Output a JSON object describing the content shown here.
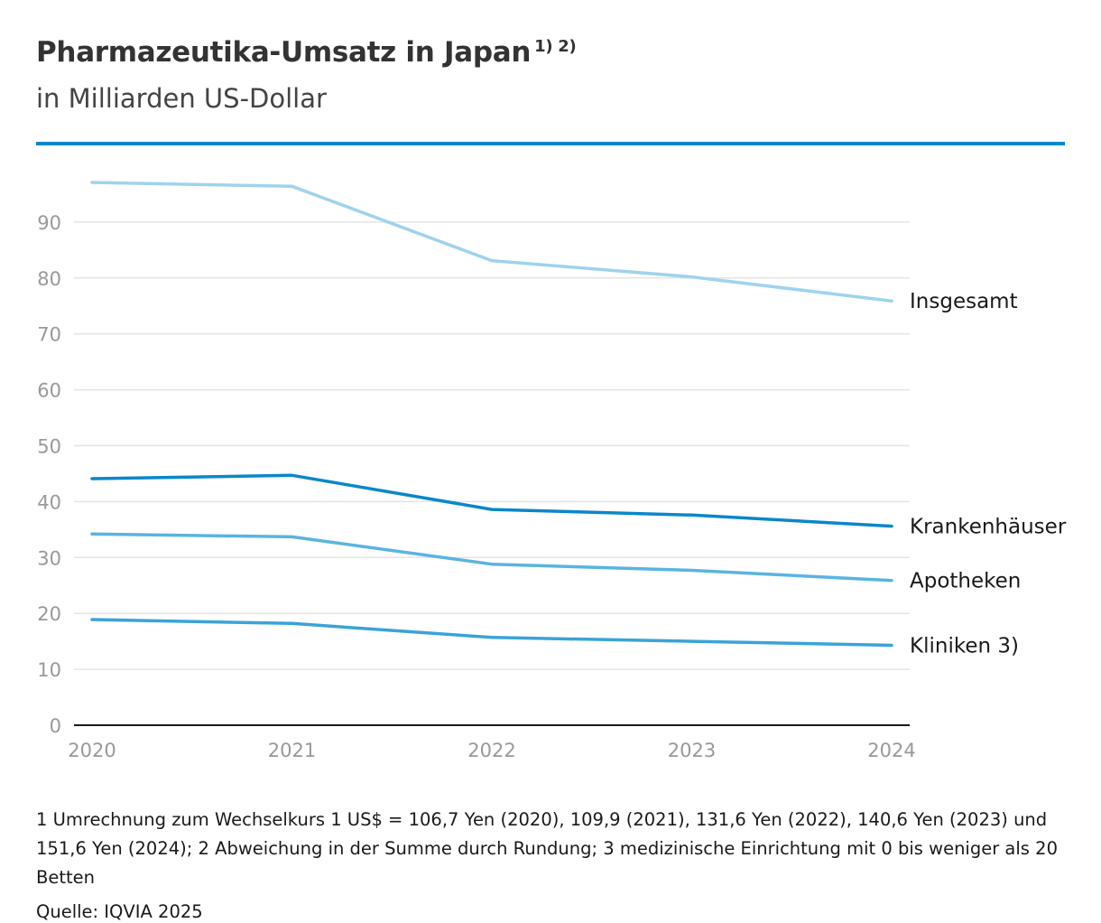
{
  "header": {
    "title": "Pharmazeutika-Umsatz in Japan",
    "title_footnotes": "1) 2)",
    "subtitle": "in Milliarden US-Dollar"
  },
  "colors": {
    "accent_rule": "#0088cc",
    "insgesamt": "#9fd3ec",
    "krankenhaeuser": "#0a87c9",
    "apotheken": "#5ab4e0",
    "kliniken": "#3aa3d8",
    "grid": "#e4e4e4",
    "axis": "#1a1a1a",
    "tick_text": "#999999"
  },
  "chart_data": {
    "type": "line",
    "title": "Pharmazeutika-Umsatz in Japan",
    "ylabel": "in Milliarden US-Dollar",
    "xlabel": "",
    "categories": [
      "2020",
      "2021",
      "2022",
      "2023",
      "2024"
    ],
    "y_ticks": [
      0,
      10,
      20,
      30,
      40,
      50,
      60,
      70,
      80,
      90
    ],
    "ylim": [
      0,
      97
    ],
    "grid": true,
    "legend": "inline-right",
    "series": [
      {
        "name": "Insgesamt",
        "color_key": "insgesamt",
        "values": [
          97.1,
          96.4,
          83.1,
          80.2,
          75.9
        ]
      },
      {
        "name": "Krankenhäuser",
        "color_key": "krankenhaeuser",
        "values": [
          44.1,
          44.7,
          38.6,
          37.6,
          35.6
        ]
      },
      {
        "name": "Apotheken",
        "color_key": "apotheken",
        "values": [
          34.2,
          33.7,
          28.8,
          27.7,
          25.9
        ]
      },
      {
        "name": "Kliniken 3)",
        "color_key": "kliniken",
        "values": [
          18.9,
          18.2,
          15.7,
          15.0,
          14.3
        ]
      }
    ]
  },
  "footnote": "1 Umrechnung zum Wechselkurs 1 US$ = 106,7 Yen (2020), 109,9 (2021), 131,6 Yen (2022), 140,6 Yen (2023) und 151,6 Yen (2024); 2 Abweichung in der Summe durch Rundung; 3 medizinische Einrichtung mit 0 bis weniger als 20 Betten",
  "source": "Quelle: IQVIA 2025"
}
